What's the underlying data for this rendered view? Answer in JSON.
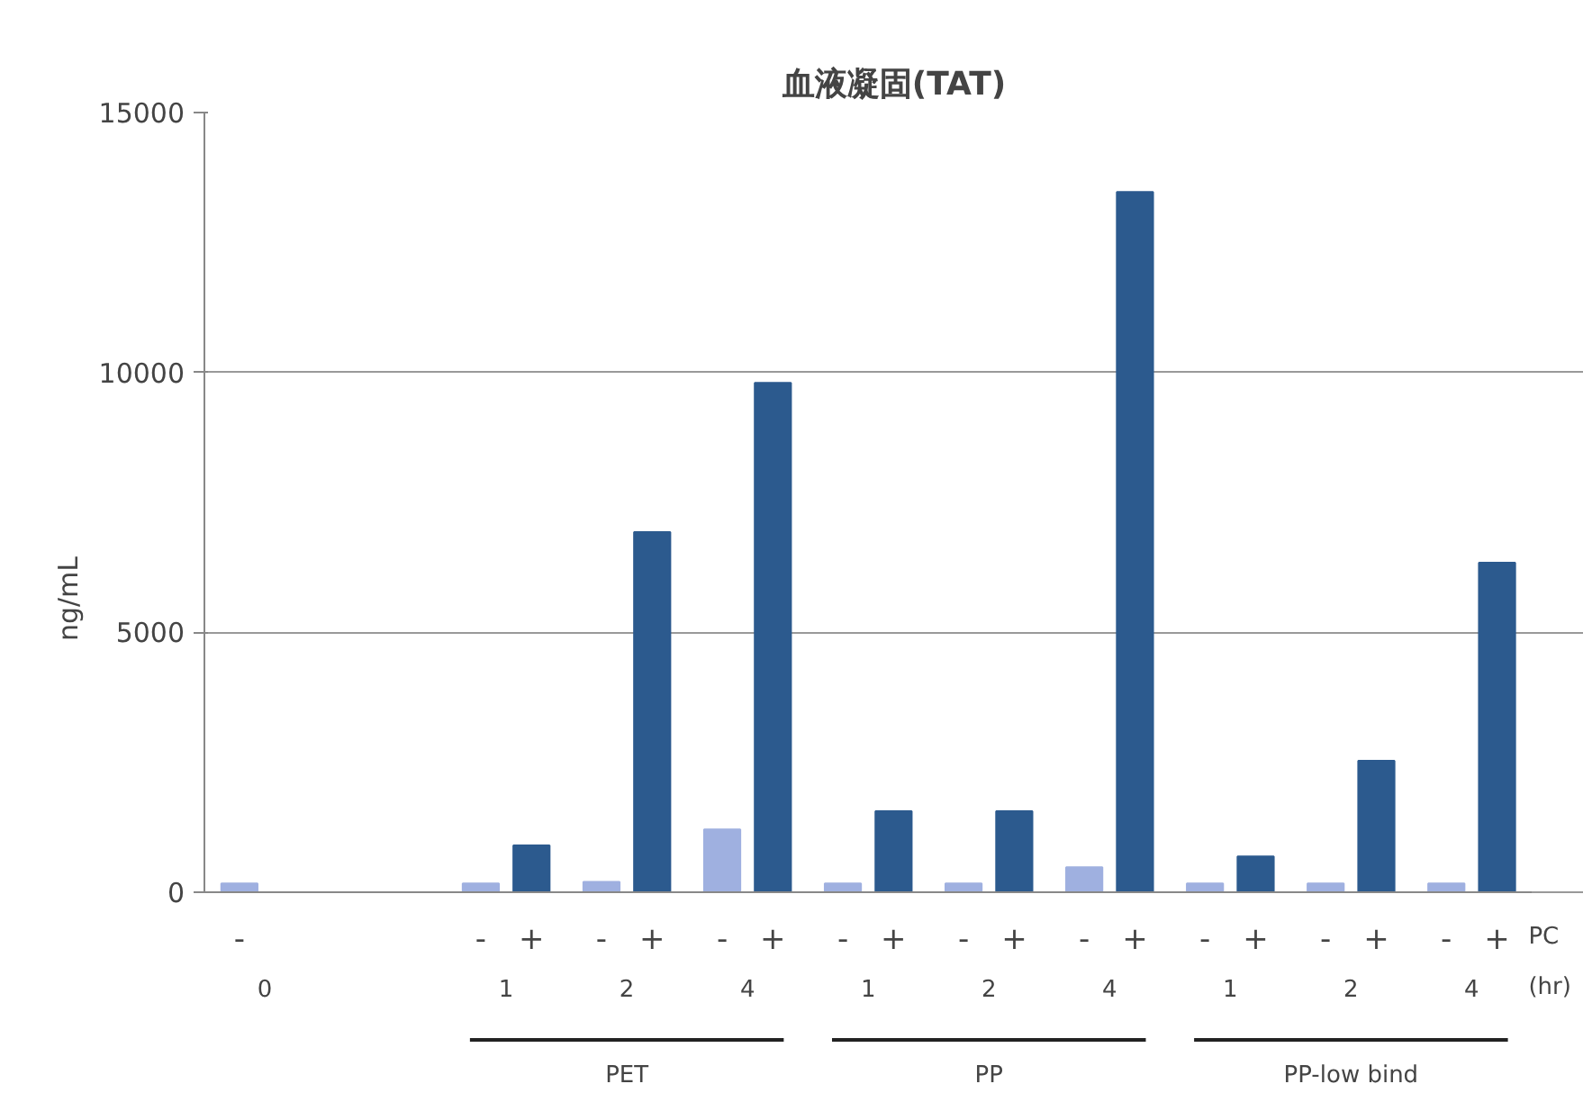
{
  "chart_data": {
    "type": "bar",
    "title": "血液凝固(TAT)",
    "ylabel": "ng/mL",
    "categories": [
      "0",
      null,
      "1",
      "2",
      "4",
      "1",
      "2",
      "4",
      "1",
      "2",
      "4"
    ],
    "series": [
      {
        "name": "-",
        "color": "#9fb0e0",
        "values": [
          170,
          null,
          170,
          200,
          1210,
          170,
          170,
          480,
          170,
          170,
          170
        ]
      },
      {
        "name": "+",
        "color": "#2c5a8e",
        "values": [
          null,
          null,
          900,
          6930,
          9800,
          1560,
          1560,
          13470,
          690,
          2530,
          6340
        ]
      }
    ],
    "ylim": [
      0,
      15000
    ],
    "yticks": [
      0,
      5000,
      10000,
      15000
    ],
    "grid": "y",
    "annotations": [
      "PC",
      "(hr)",
      "PET",
      "PP",
      "PP-low bind"
    ]
  }
}
